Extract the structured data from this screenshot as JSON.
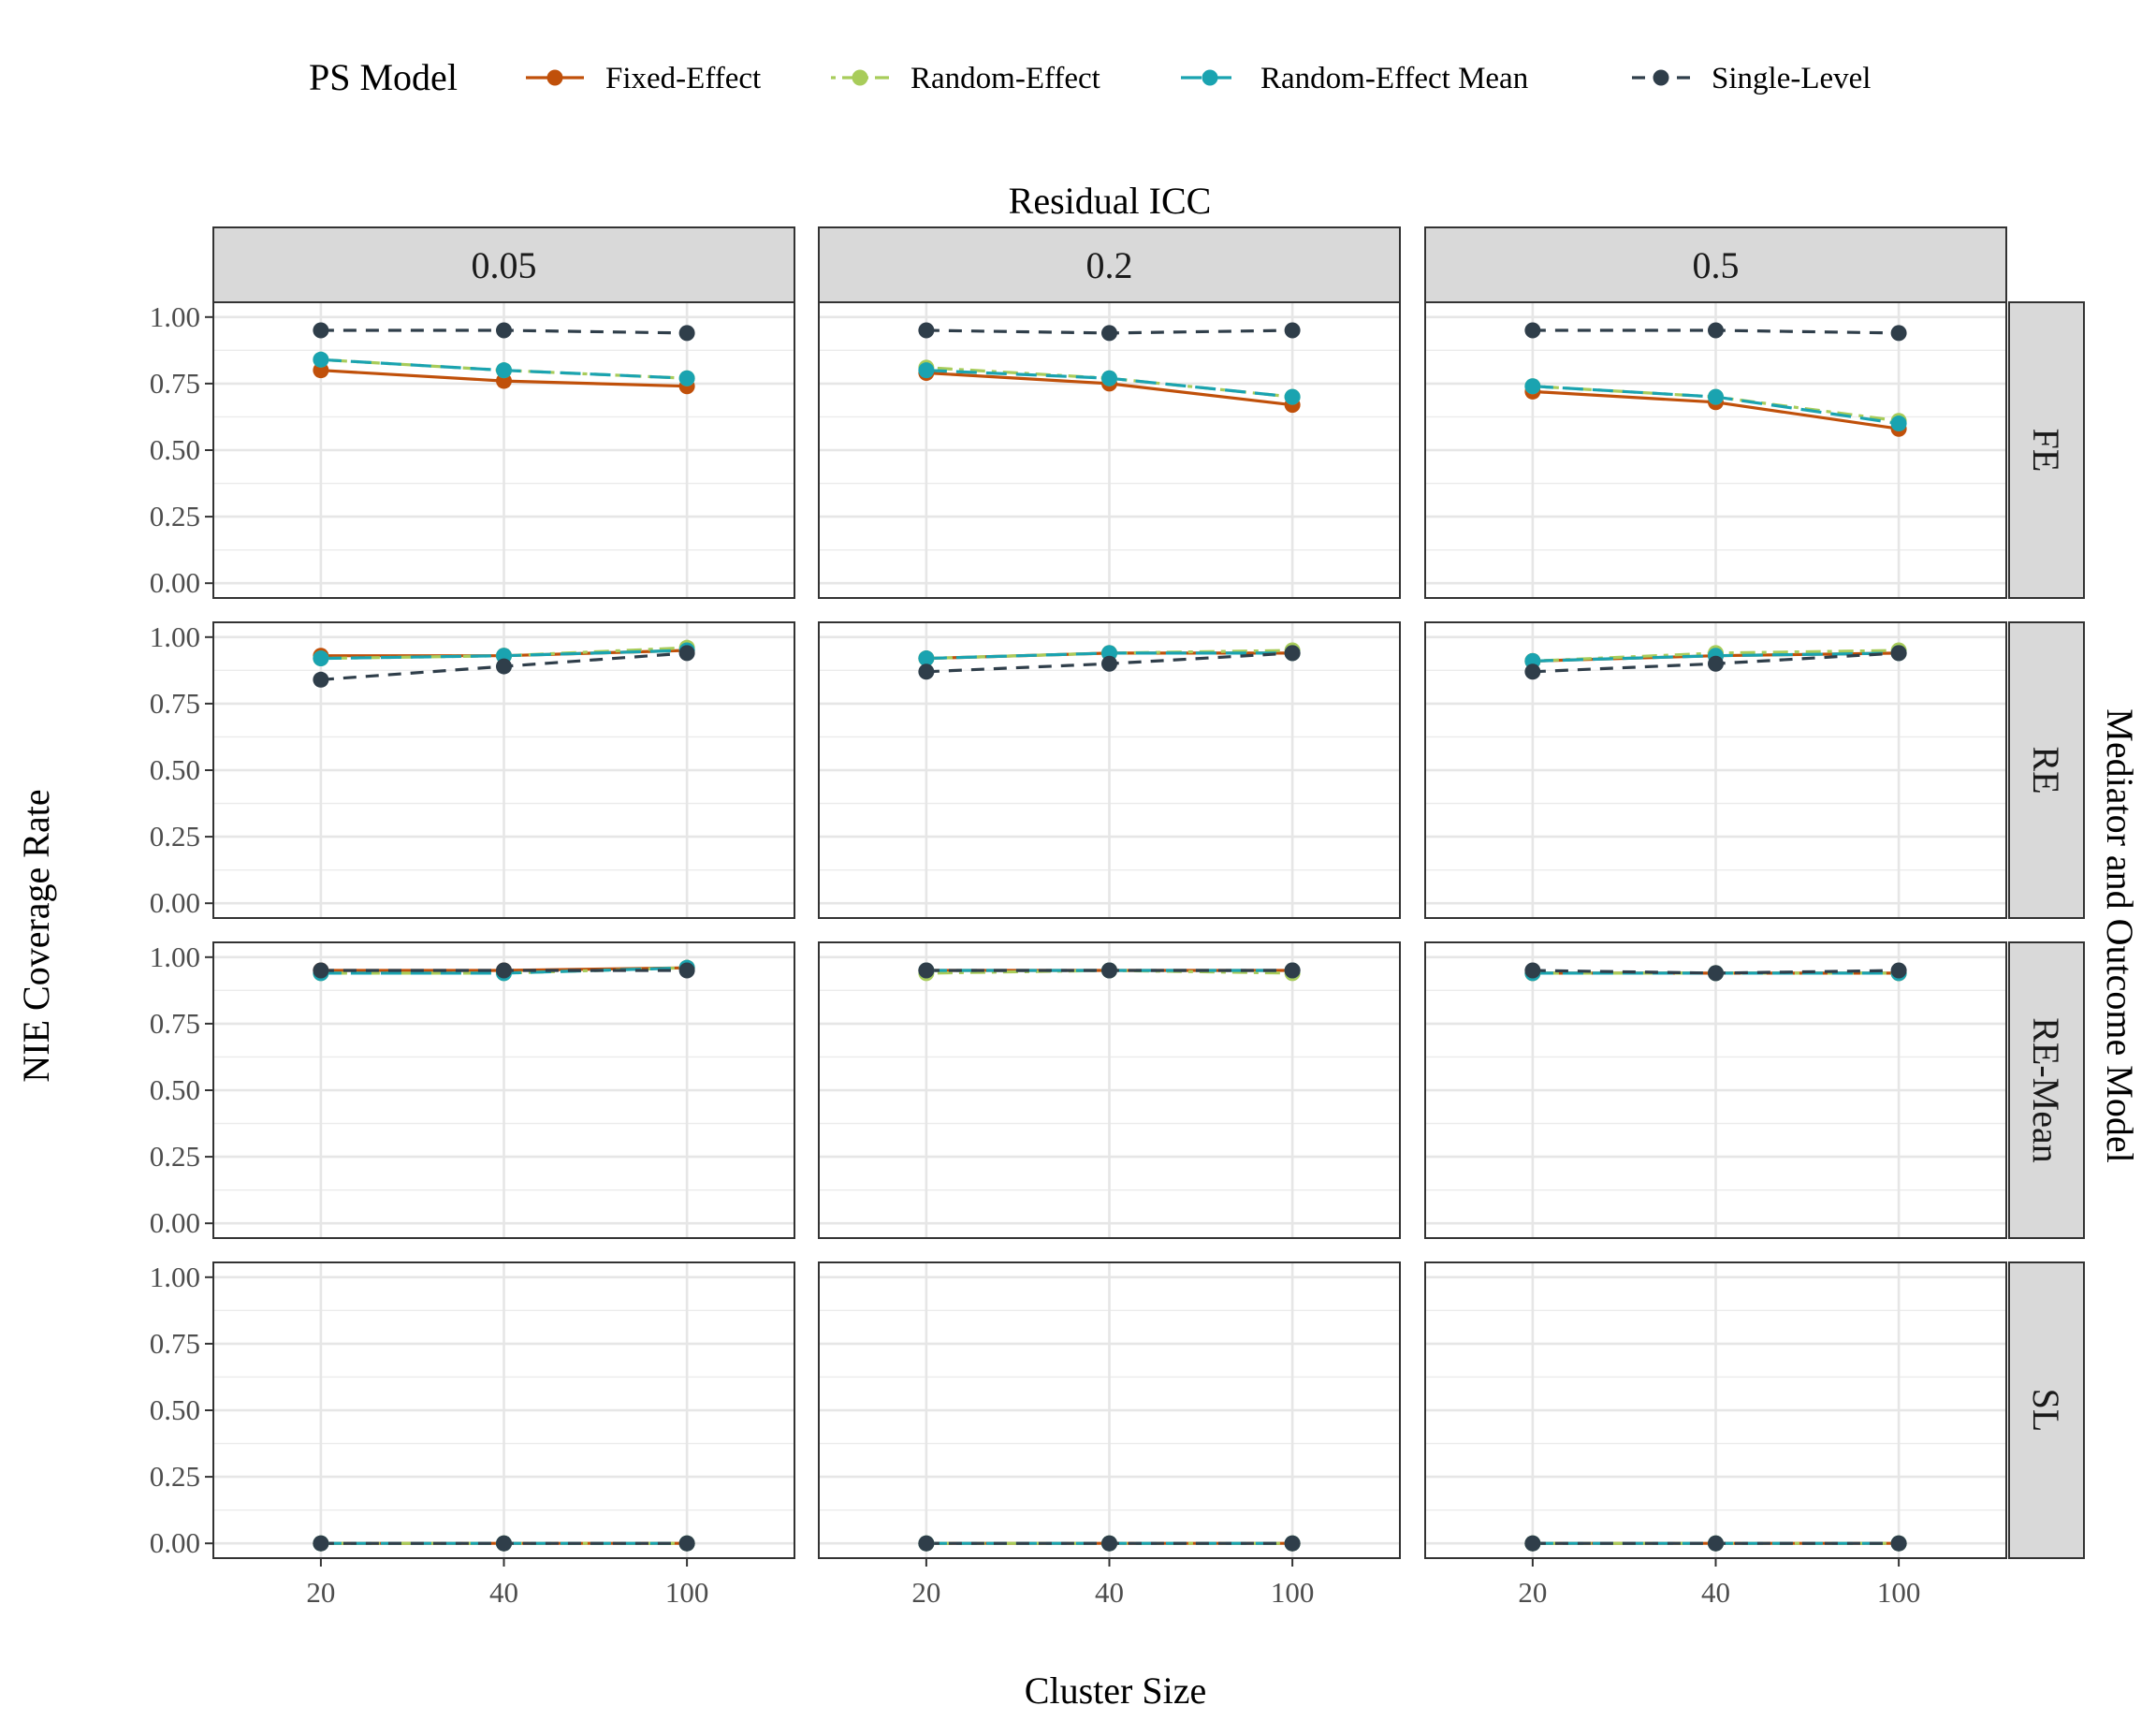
{
  "chart_data": {
    "type": "line",
    "legend": {
      "title": "PS Model",
      "position": "top"
    },
    "col_facet_title": "Residual ICC",
    "row_facet_title": "Mediator and Outcome Model",
    "xlabel": "Cluster Size",
    "ylabel": "NIE Coverage Rate",
    "x_categories": [
      "20",
      "40",
      "100"
    ],
    "y_ticks": [
      "0.00",
      "0.25",
      "0.50",
      "0.75",
      "1.00"
    ],
    "ylim": [
      0,
      1
    ],
    "grid": true,
    "col_facets": [
      "0.05",
      "0.2",
      "0.5"
    ],
    "row_facets": [
      "FE",
      "RE",
      "RE-Mean",
      "SL"
    ],
    "series": [
      {
        "name": "Fixed-Effect",
        "color": "#C0500A",
        "dash": "solid"
      },
      {
        "name": "Random-Effect",
        "color": "#A8CC5A",
        "dash": "dotdash"
      },
      {
        "name": "Random-Effect Mean",
        "color": "#1AA3B0",
        "dash": "longdash"
      },
      {
        "name": "Single-Level",
        "color": "#2F3E4A",
        "dash": "dash"
      }
    ],
    "panels": [
      {
        "row": "FE",
        "col": "0.05",
        "values": {
          "Fixed-Effect": [
            0.8,
            0.76,
            0.74
          ],
          "Random-Effect": [
            0.84,
            0.8,
            0.77
          ],
          "Random-Effect Mean": [
            0.84,
            0.8,
            0.77
          ],
          "Single-Level": [
            0.95,
            0.95,
            0.94
          ]
        }
      },
      {
        "row": "FE",
        "col": "0.2",
        "values": {
          "Fixed-Effect": [
            0.79,
            0.75,
            0.67
          ],
          "Random-Effect": [
            0.81,
            0.77,
            0.7
          ],
          "Random-Effect Mean": [
            0.8,
            0.77,
            0.7
          ],
          "Single-Level": [
            0.95,
            0.94,
            0.95
          ]
        }
      },
      {
        "row": "FE",
        "col": "0.5",
        "values": {
          "Fixed-Effect": [
            0.72,
            0.68,
            0.58
          ],
          "Random-Effect": [
            0.74,
            0.7,
            0.61
          ],
          "Random-Effect Mean": [
            0.74,
            0.7,
            0.6
          ],
          "Single-Level": [
            0.95,
            0.95,
            0.94
          ]
        }
      },
      {
        "row": "RE",
        "col": "0.05",
        "values": {
          "Fixed-Effect": [
            0.93,
            0.93,
            0.95
          ],
          "Random-Effect": [
            0.92,
            0.93,
            0.96
          ],
          "Random-Effect Mean": [
            0.92,
            0.93,
            0.95
          ],
          "Single-Level": [
            0.84,
            0.89,
            0.94
          ]
        }
      },
      {
        "row": "RE",
        "col": "0.2",
        "values": {
          "Fixed-Effect": [
            0.92,
            0.94,
            0.94
          ],
          "Random-Effect": [
            0.92,
            0.94,
            0.95
          ],
          "Random-Effect Mean": [
            0.92,
            0.94,
            0.94
          ],
          "Single-Level": [
            0.87,
            0.9,
            0.94
          ]
        }
      },
      {
        "row": "RE",
        "col": "0.5",
        "values": {
          "Fixed-Effect": [
            0.91,
            0.93,
            0.94
          ],
          "Random-Effect": [
            0.91,
            0.94,
            0.95
          ],
          "Random-Effect Mean": [
            0.91,
            0.93,
            0.94
          ],
          "Single-Level": [
            0.87,
            0.9,
            0.94
          ]
        }
      },
      {
        "row": "RE-Mean",
        "col": "0.05",
        "values": {
          "Fixed-Effect": [
            0.95,
            0.95,
            0.96
          ],
          "Random-Effect": [
            0.94,
            0.94,
            0.96
          ],
          "Random-Effect Mean": [
            0.94,
            0.94,
            0.96
          ],
          "Single-Level": [
            0.95,
            0.95,
            0.95
          ]
        }
      },
      {
        "row": "RE-Mean",
        "col": "0.2",
        "values": {
          "Fixed-Effect": [
            0.95,
            0.95,
            0.95
          ],
          "Random-Effect": [
            0.94,
            0.95,
            0.94
          ],
          "Random-Effect Mean": [
            0.95,
            0.95,
            0.95
          ],
          "Single-Level": [
            0.95,
            0.95,
            0.95
          ]
        }
      },
      {
        "row": "RE-Mean",
        "col": "0.5",
        "values": {
          "Fixed-Effect": [
            0.94,
            0.94,
            0.94
          ],
          "Random-Effect": [
            0.94,
            0.94,
            0.94
          ],
          "Random-Effect Mean": [
            0.94,
            0.94,
            0.94
          ],
          "Single-Level": [
            0.95,
            0.94,
            0.95
          ]
        }
      },
      {
        "row": "SL",
        "col": "0.05",
        "values": {
          "Fixed-Effect": [
            0.0,
            0.0,
            0.0
          ],
          "Random-Effect": [
            0.0,
            0.0,
            0.0
          ],
          "Random-Effect Mean": [
            0.0,
            0.0,
            0.0
          ],
          "Single-Level": [
            0.0,
            0.0,
            0.0
          ]
        }
      },
      {
        "row": "SL",
        "col": "0.2",
        "values": {
          "Fixed-Effect": [
            0.0,
            0.0,
            0.0
          ],
          "Random-Effect": [
            0.0,
            0.0,
            0.0
          ],
          "Random-Effect Mean": [
            0.0,
            0.0,
            0.0
          ],
          "Single-Level": [
            0.0,
            0.0,
            0.0
          ]
        }
      },
      {
        "row": "SL",
        "col": "0.5",
        "values": {
          "Fixed-Effect": [
            0.0,
            0.0,
            0.0
          ],
          "Random-Effect": [
            0.0,
            0.0,
            0.0
          ],
          "Random-Effect Mean": [
            0.0,
            0.0,
            0.0
          ],
          "Single-Level": [
            0.0,
            0.0,
            0.0
          ]
        }
      }
    ]
  }
}
